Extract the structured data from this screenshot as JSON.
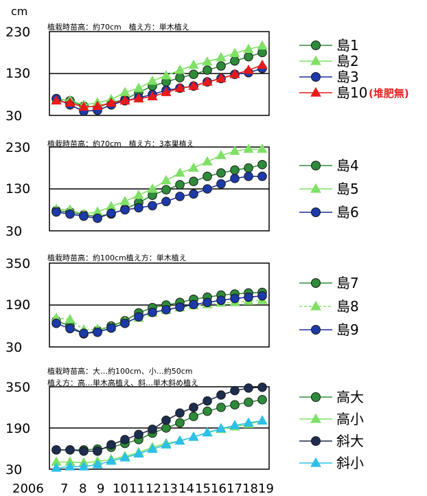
{
  "chart_data": [
    {
      "type": "line",
      "unit_label": "cm",
      "annotation": "植栽時苗高：約70cm　植え方：単木植え",
      "yticks": [
        "230",
        "130",
        "30"
      ],
      "ylim": [
        30,
        230
      ],
      "grid_y": [
        130
      ],
      "series": [
        {
          "name": "島1",
          "color": "#2e8b3a",
          "fill": "#2e8b3a",
          "marker": "circle",
          "values": [
            70,
            65,
            52,
            50,
            60,
            68,
            85,
            100,
            110,
            120,
            128,
            138,
            148,
            160,
            170,
            180
          ]
        },
        {
          "name": "島2",
          "color": "#7fe066",
          "fill": "#7fe066",
          "marker": "triangle",
          "values": [
            68,
            66,
            55,
            60,
            68,
            85,
            95,
            112,
            125,
            138,
            150,
            158,
            168,
            178,
            188,
            196
          ]
        },
        {
          "name": "島3",
          "color": "#1c2a9a",
          "fill": "#1c3aa8",
          "marker": "circle",
          "values": [
            70,
            55,
            40,
            42,
            55,
            65,
            72,
            80,
            90,
            95,
            100,
            110,
            118,
            128,
            132,
            142
          ]
        },
        {
          "name": "島10",
          "name_suffix": "(堆肥無)",
          "color": "#e81a1a",
          "fill": "#e81a1a",
          "marker": "triangle",
          "values": [
            65,
            60,
            50,
            52,
            60,
            65,
            70,
            75,
            85,
            95,
            100,
            110,
            118,
            128,
            138,
            150
          ]
        }
      ]
    },
    {
      "type": "line",
      "annotation": "植栽時苗高：約70cm　植え方：3本巣植え",
      "yticks": [
        "230",
        "130",
        "30"
      ],
      "ylim": [
        30,
        230
      ],
      "grid_y": [
        130
      ],
      "series": [
        {
          "name": "島4",
          "color": "#2e8b3a",
          "fill": "#2e8b3a",
          "marker": "circle",
          "values": [
            78,
            75,
            68,
            65,
            70,
            82,
            97,
            115,
            128,
            140,
            148,
            160,
            168,
            175,
            180,
            188
          ]
        },
        {
          "name": "島5",
          "color": "#7fe066",
          "fill": "#7fe066",
          "marker": "triangle",
          "values": [
            82,
            80,
            70,
            75,
            88,
            100,
            115,
            130,
            150,
            168,
            180,
            195,
            210,
            220,
            225,
            225
          ]
        },
        {
          "name": "島6",
          "color": "#1c2a9a",
          "fill": "#1c3aa8",
          "marker": "circle",
          "values": [
            75,
            70,
            65,
            60,
            72,
            80,
            85,
            90,
            100,
            112,
            118,
            130,
            142,
            155,
            160,
            160
          ]
        }
      ]
    },
    {
      "type": "line",
      "annotation": "植栽時苗高：約100cm植え方：単木植え",
      "yticks": [
        "350",
        "190",
        "30"
      ],
      "ylim": [
        30,
        350
      ],
      "grid_y": [
        190
      ],
      "series": [
        {
          "name": "島7",
          "color": "#2e8b3a",
          "fill": "#2e8b3a",
          "marker": "circle",
          "values": [
            130,
            110,
            80,
            92,
            110,
            130,
            160,
            180,
            190,
            200,
            212,
            220,
            228,
            232,
            236,
            238
          ]
        },
        {
          "name": "島8",
          "color": "#7fe066",
          "fill": "#7fe066",
          "marker": "triangle",
          "dashed": true,
          "values": [
            140,
            135,
            95,
            98,
            105,
            125,
            140,
            160,
            170,
            180,
            188,
            192,
            198,
            200,
            205,
            208
          ]
        },
        {
          "name": "島9",
          "color": "#1c2a9a",
          "fill": "#1c3aa8",
          "marker": "circle",
          "values": [
            120,
            100,
            82,
            86,
            102,
            120,
            145,
            162,
            172,
            182,
            192,
            200,
            208,
            215,
            220,
            225
          ]
        }
      ]
    },
    {
      "type": "line",
      "annotation_lines": [
        "植栽時苗高：大…約100cm、小…約50cm",
        "植え方：高…単木高植え、斜…単木斜め植え"
      ],
      "yticks": [
        "350",
        "190",
        "30"
      ],
      "ylim": [
        30,
        350
      ],
      "grid_y": [
        190
      ],
      "series": [
        {
          "name": "高大",
          "color": "#2e8b3a",
          "fill": "#2e8b3a",
          "marker": "circle",
          "values": [
            105,
            105,
            105,
            108,
            115,
            130,
            145,
            170,
            190,
            210,
            235,
            255,
            270,
            280,
            290,
            300
          ]
        },
        {
          "name": "高小",
          "color": "#7fe066",
          "fill": "#7fe066",
          "marker": "triangle",
          "values": [
            58,
            58,
            55,
            60,
            68,
            80,
            95,
            115,
            130,
            140,
            155,
            172,
            185,
            195,
            205,
            218
          ]
        },
        {
          "name": "斜大",
          "color": "#1a2a48",
          "fill": "#1d2d50",
          "marker": "circle",
          "values": [
            105,
            105,
            100,
            100,
            125,
            145,
            165,
            185,
            220,
            248,
            270,
            295,
            318,
            335,
            345,
            348
          ]
        },
        {
          "name": "斜小",
          "color": "#2dc0e8",
          "fill": "#2dc0e8",
          "marker": "triangle",
          "values": [
            35,
            40,
            40,
            48,
            62,
            75,
            90,
            108,
            125,
            140,
            155,
            172,
            188,
            200,
            210,
            218
          ]
        }
      ]
    }
  ],
  "x_axis": {
    "tick_labels": [
      "2006",
      "7",
      "8",
      "9",
      "10",
      "11",
      "12",
      "13",
      "14",
      "15",
      "16",
      "17",
      "18",
      "19"
    ]
  }
}
